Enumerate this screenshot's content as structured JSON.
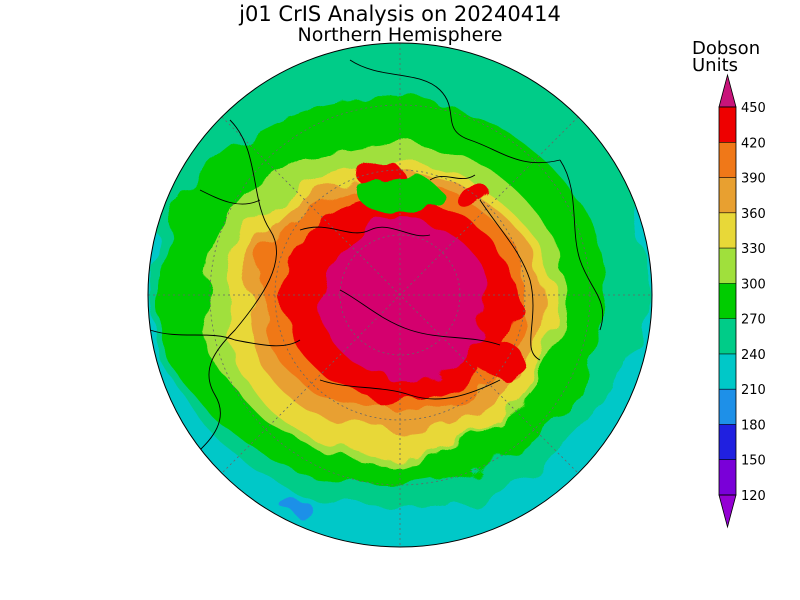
{
  "title": "j01 CrIS Analysis on 20240414",
  "subtitle": "Northern Hemisphere",
  "colorbar": {
    "title_line1": "Dobson",
    "title_line2": "Units",
    "levels": [
      {
        "value": "450",
        "color": "#d4006e"
      },
      {
        "value": "420",
        "color": "#ee0000"
      },
      {
        "value": "390",
        "color": "#f07818"
      },
      {
        "value": "360",
        "color": "#e8a030"
      },
      {
        "value": "330",
        "color": "#e8d838"
      },
      {
        "value": "300",
        "color": "#a0e03c"
      },
      {
        "value": "270",
        "color": "#00cc00"
      },
      {
        "value": "240",
        "color": "#00cc88"
      },
      {
        "value": "210",
        "color": "#00c8c8"
      },
      {
        "value": "180",
        "color": "#1e90e8"
      },
      {
        "value": "150",
        "color": "#2020e0"
      },
      {
        "value": "120",
        "color": "#7a00d8"
      }
    ],
    "min_color": "#9400d3",
    "max_color": "#c8147a"
  },
  "map": {
    "projection": "polar-stereographic",
    "hemisphere": "north",
    "variable": "total-column-ozone",
    "ocean_edge_color": "#00c8c8"
  }
}
